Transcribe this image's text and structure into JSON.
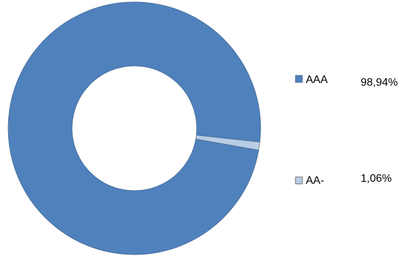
{
  "chart_data": {
    "type": "pie",
    "subtype": "doughnut",
    "title": "",
    "categories": [
      "AAA",
      "AA-"
    ],
    "values": [
      98.94,
      1.06
    ],
    "value_labels": [
      "98,94%",
      "1,06%"
    ],
    "colors": [
      "#4f81bd",
      "#b9cde5"
    ],
    "legend_placement": "right"
  }
}
